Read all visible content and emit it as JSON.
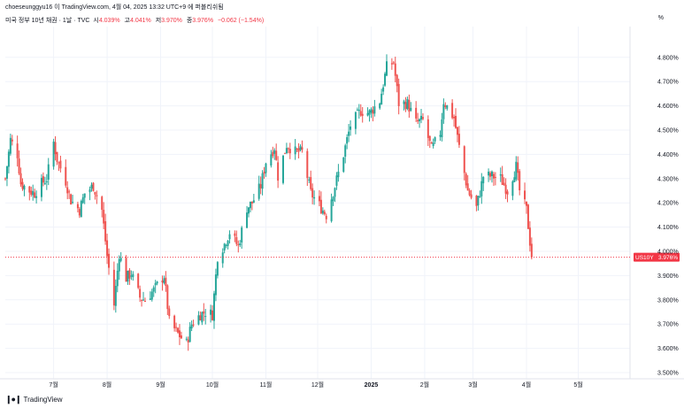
{
  "header": {
    "publish_line": "choeseunggyu16 이 TradingView.com, 4월 04, 2025 13:32 UTC+9 에 퍼블리쉬됨",
    "symbol_desc": "미국 정부 10년 채권 · 1날 · TVC",
    "open_label": "시",
    "open": "4.039%",
    "high_label": "고",
    "high": "4.041%",
    "low_label": "저",
    "low": "3.970%",
    "close_label": "종",
    "close": "3.976%",
    "change": "−0.062 (−1.54%)",
    "unit": "%"
  },
  "footer": {
    "brand": "TradingView",
    "logo": "tradingview-logo-icon"
  },
  "colors": {
    "up": "#26a69a",
    "down": "#ef5350",
    "price_line": "#f23645",
    "grid": "#f0f3fa",
    "axis_text": "#131722"
  },
  "chart_data": {
    "type": "candlestick",
    "symbol": "US10Y",
    "last_value": 3.976,
    "last_label": "3.976%",
    "ylim": [
      3.5,
      4.85
    ],
    "y_ticks": [
      "3.500%",
      "3.600%",
      "3.700%",
      "3.800%",
      "3.900%",
      "4.000%",
      "4.100%",
      "4.200%",
      "4.300%",
      "4.400%",
      "4.500%",
      "4.600%",
      "4.700%",
      "4.800%"
    ],
    "x_ticks": [
      {
        "label": "7월",
        "date": "2024-07-01"
      },
      {
        "label": "8월",
        "date": "2024-08-01"
      },
      {
        "label": "9월",
        "date": "2024-09-01"
      },
      {
        "label": "10월",
        "date": "2024-10-01"
      },
      {
        "label": "11월",
        "date": "2024-11-01"
      },
      {
        "label": "12월",
        "date": "2024-12-01"
      },
      {
        "label": "2025",
        "date": "2025-01-01"
      },
      {
        "label": "2월",
        "date": "2025-02-01"
      },
      {
        "label": "3월",
        "date": "2025-03-01"
      },
      {
        "label": "4월",
        "date": "2025-04-01"
      },
      {
        "label": "5월",
        "date": "2025-05-01"
      }
    ],
    "x_range": [
      "2024-06-03",
      "2025-05-31"
    ],
    "close_path": [
      [
        "2024-06-03",
        4.3
      ],
      [
        "2024-06-06",
        4.46
      ],
      [
        "2024-06-10",
        4.4
      ],
      [
        "2024-06-12",
        4.28
      ],
      [
        "2024-06-17",
        4.25
      ],
      [
        "2024-06-20",
        4.24
      ],
      [
        "2024-06-24",
        4.28
      ],
      [
        "2024-06-27",
        4.3
      ],
      [
        "2024-07-01",
        4.45
      ],
      [
        "2024-07-03",
        4.38
      ],
      [
        "2024-07-08",
        4.29
      ],
      [
        "2024-07-11",
        4.21
      ],
      [
        "2024-07-16",
        4.17
      ],
      [
        "2024-07-19",
        4.24
      ],
      [
        "2024-07-24",
        4.27
      ],
      [
        "2024-07-29",
        4.17
      ],
      [
        "2024-08-01",
        3.98
      ],
      [
        "2024-08-05",
        3.78
      ],
      [
        "2024-08-08",
        3.99
      ],
      [
        "2024-08-12",
        3.89
      ],
      [
        "2024-08-15",
        3.91
      ],
      [
        "2024-08-20",
        3.81
      ],
      [
        "2024-08-23",
        3.8
      ],
      [
        "2024-08-28",
        3.84
      ],
      [
        "2024-09-03",
        3.9
      ],
      [
        "2024-09-06",
        3.71
      ],
      [
        "2024-09-11",
        3.66
      ],
      [
        "2024-09-16",
        3.62
      ],
      [
        "2024-09-19",
        3.7
      ],
      [
        "2024-09-24",
        3.74
      ],
      [
        "2024-09-27",
        3.75
      ],
      [
        "2024-10-01",
        3.74
      ],
      [
        "2024-10-04",
        3.98
      ],
      [
        "2024-10-08",
        4.03
      ],
      [
        "2024-10-11",
        4.08
      ],
      [
        "2024-10-16",
        4.02
      ],
      [
        "2024-10-21",
        4.18
      ],
      [
        "2024-10-24",
        4.2
      ],
      [
        "2024-10-29",
        4.27
      ],
      [
        "2024-11-01",
        4.37
      ],
      [
        "2024-11-06",
        4.43
      ],
      [
        "2024-11-08",
        4.31
      ],
      [
        "2024-11-13",
        4.44
      ],
      [
        "2024-11-18",
        4.41
      ],
      [
        "2024-11-22",
        4.41
      ],
      [
        "2024-11-27",
        4.24
      ],
      [
        "2024-12-02",
        4.19
      ],
      [
        "2024-12-06",
        4.15
      ],
      [
        "2024-12-11",
        4.27
      ],
      [
        "2024-12-16",
        4.4
      ],
      [
        "2024-12-20",
        4.52
      ],
      [
        "2024-12-26",
        4.58
      ],
      [
        "2024-12-31",
        4.57
      ],
      [
        "2025-01-06",
        4.62
      ],
      [
        "2025-01-10",
        4.76
      ],
      [
        "2025-01-14",
        4.78
      ],
      [
        "2025-01-17",
        4.61
      ],
      [
        "2025-01-22",
        4.61
      ],
      [
        "2025-01-27",
        4.53
      ],
      [
        "2025-01-31",
        4.54
      ],
      [
        "2025-02-05",
        4.42
      ],
      [
        "2025-02-10",
        4.49
      ],
      [
        "2025-02-12",
        4.62
      ],
      [
        "2025-02-18",
        4.55
      ],
      [
        "2025-02-21",
        4.43
      ],
      [
        "2025-02-26",
        4.25
      ],
      [
        "2025-03-03",
        4.18
      ],
      [
        "2025-03-07",
        4.31
      ],
      [
        "2025-03-12",
        4.31
      ],
      [
        "2025-03-17",
        4.3
      ],
      [
        "2025-03-21",
        4.25
      ],
      [
        "2025-03-26",
        4.35
      ],
      [
        "2025-03-28",
        4.25
      ],
      [
        "2025-04-01",
        4.17
      ],
      [
        "2025-04-03",
        4.04
      ],
      [
        "2025-04-04",
        3.976
      ]
    ]
  }
}
